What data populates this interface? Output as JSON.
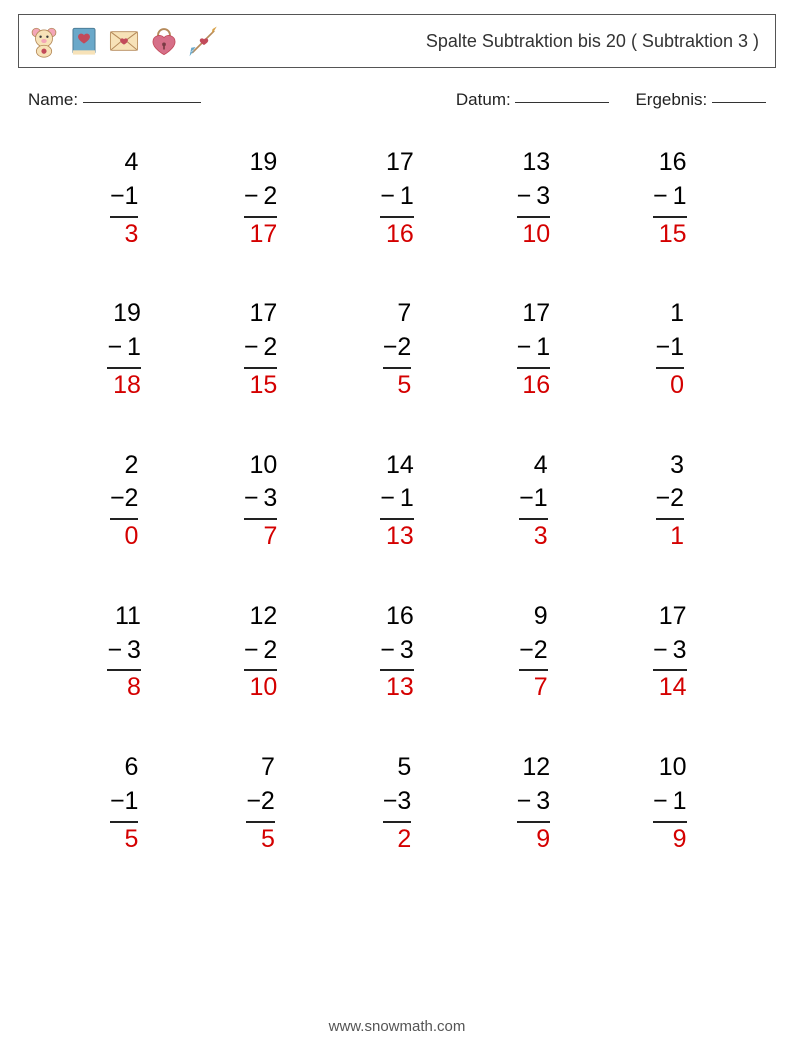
{
  "title": "Spalte Subtraktion bis 20 ( Subtraktion 3 )",
  "labels": {
    "name": "Name:",
    "date": "Datum:",
    "result": "Ergebnis:"
  },
  "blank_widths": {
    "name": 118,
    "date": 94,
    "result": 54
  },
  "footer": "www.snowmath.com",
  "colors": {
    "answer": "#d40000",
    "text": "#222222",
    "border": "#555555",
    "rule": "#222222",
    "background": "#ffffff"
  },
  "typography": {
    "title_fontsize": 18,
    "label_fontsize": 17,
    "problem_fontsize": 25,
    "footer_fontsize": 15
  },
  "layout": {
    "rows": 5,
    "cols": 5
  },
  "icons": [
    "teddy-bear",
    "heart-book",
    "love-letter",
    "heart-lock",
    "cupid-arrow"
  ],
  "icon_palette": {
    "pink": "#f4a6b8",
    "darkpink": "#d66f88",
    "red": "#c24a5a",
    "cream": "#f7e2b8",
    "brown": "#b58a5a",
    "blue": "#6aa8c9",
    "gold": "#d8a24a"
  },
  "problems": [
    {
      "a": 4,
      "b": 1,
      "ans": 3
    },
    {
      "a": 19,
      "b": 2,
      "ans": 17
    },
    {
      "a": 17,
      "b": 1,
      "ans": 16
    },
    {
      "a": 13,
      "b": 3,
      "ans": 10
    },
    {
      "a": 16,
      "b": 1,
      "ans": 15
    },
    {
      "a": 19,
      "b": 1,
      "ans": 18
    },
    {
      "a": 17,
      "b": 2,
      "ans": 15
    },
    {
      "a": 7,
      "b": 2,
      "ans": 5
    },
    {
      "a": 17,
      "b": 1,
      "ans": 16
    },
    {
      "a": 1,
      "b": 1,
      "ans": 0
    },
    {
      "a": 2,
      "b": 2,
      "ans": 0
    },
    {
      "a": 10,
      "b": 3,
      "ans": 7
    },
    {
      "a": 14,
      "b": 1,
      "ans": 13
    },
    {
      "a": 4,
      "b": 1,
      "ans": 3
    },
    {
      "a": 3,
      "b": 2,
      "ans": 1
    },
    {
      "a": 11,
      "b": 3,
      "ans": 8
    },
    {
      "a": 12,
      "b": 2,
      "ans": 10
    },
    {
      "a": 16,
      "b": 3,
      "ans": 13
    },
    {
      "a": 9,
      "b": 2,
      "ans": 7
    },
    {
      "a": 17,
      "b": 3,
      "ans": 14
    },
    {
      "a": 6,
      "b": 1,
      "ans": 5
    },
    {
      "a": 7,
      "b": 2,
      "ans": 5
    },
    {
      "a": 5,
      "b": 3,
      "ans": 2
    },
    {
      "a": 12,
      "b": 3,
      "ans": 9
    },
    {
      "a": 10,
      "b": 1,
      "ans": 9
    }
  ]
}
